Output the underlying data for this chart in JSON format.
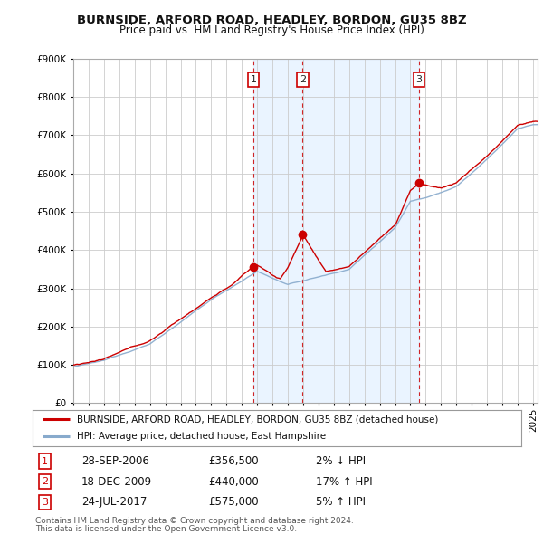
{
  "title": "BURNSIDE, ARFORD ROAD, HEADLEY, BORDON, GU35 8BZ",
  "subtitle": "Price paid vs. HM Land Registry's House Price Index (HPI)",
  "legend_property": "BURNSIDE, ARFORD ROAD, HEADLEY, BORDON, GU35 8BZ (detached house)",
  "legend_hpi": "HPI: Average price, detached house, East Hampshire",
  "footer1": "Contains HM Land Registry data © Crown copyright and database right 2024.",
  "footer2": "This data is licensed under the Open Government Licence v3.0.",
  "sales": [
    {
      "num": 1,
      "date": "28-SEP-2006",
      "price": "£356,500",
      "pct": "2%",
      "dir": "↓",
      "year": 2006.75,
      "price_val": 356500
    },
    {
      "num": 2,
      "date": "18-DEC-2009",
      "price": "£440,000",
      "pct": "17%",
      "dir": "↑",
      "year": 2009.96,
      "price_val": 440000
    },
    {
      "num": 3,
      "date": "24-JUL-2017",
      "price": "£575,000",
      "pct": "5%",
      "dir": "↑",
      "year": 2017.56,
      "price_val": 575000
    }
  ],
  "property_color": "#cc0000",
  "hpi_color": "#88aacc",
  "sale_marker_color": "#cc0000",
  "background_color": "#ffffff",
  "grid_color": "#cccccc",
  "shade_color": "#ddeeff",
  "ylim": [
    0,
    900000
  ],
  "xlim_start": 1995.0,
  "xlim_end": 2025.3
}
